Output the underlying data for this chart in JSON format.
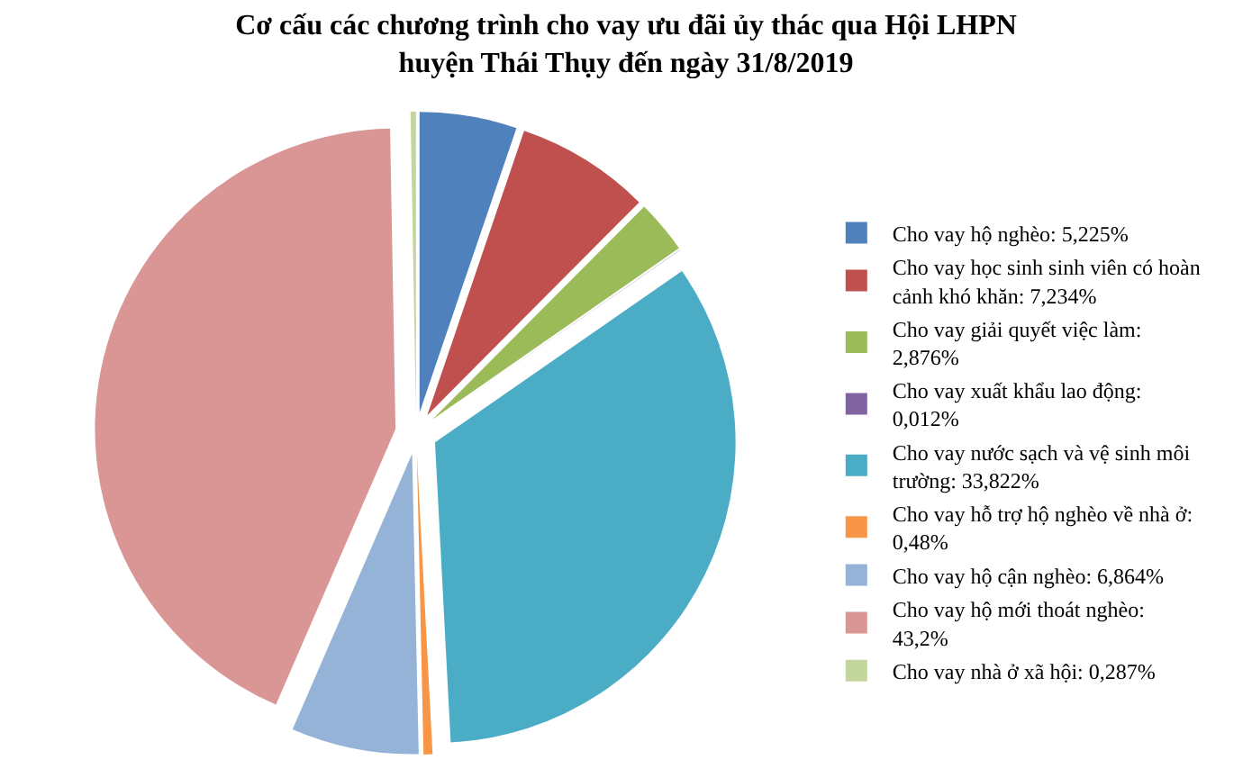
{
  "chart_data": {
    "type": "pie",
    "title": "Cơ cấu các chương trình cho vay ưu đãi ủy thác qua Hội LHPN\nhuyện Thái Thụy đến ngày 31/8/2019",
    "categories": [
      "Cho vay hộ nghèo: 5,225%",
      "Cho vay học sinh sinh viên có hoàn cảnh khó khăn: 7,234%",
      "Cho vay giải quyết việc làm: 2,876%",
      "Cho vay xuất khẩu lao động: 0,012%",
      "Cho vay nước sạch và vệ sinh môi trường: 33,822%",
      "Cho vay hỗ trợ hộ nghèo về nhà ở: 0,48%",
      "Cho vay hộ cận nghèo: 6,864%",
      "Cho vay hộ mới thoát nghèo: 43,2%",
      "Cho vay nhà ở xã hội: 0,287%"
    ],
    "values": [
      5.225,
      7.234,
      2.876,
      0.012,
      33.822,
      0.48,
      6.864,
      43.2,
      0.287
    ],
    "colors": [
      "#4f81bd",
      "#c0504d",
      "#9bbb59",
      "#8064a2",
      "#4bacc6",
      "#f79646",
      "#95b3d7",
      "#d99694",
      "#c3d69b"
    ],
    "legend": "right"
  }
}
